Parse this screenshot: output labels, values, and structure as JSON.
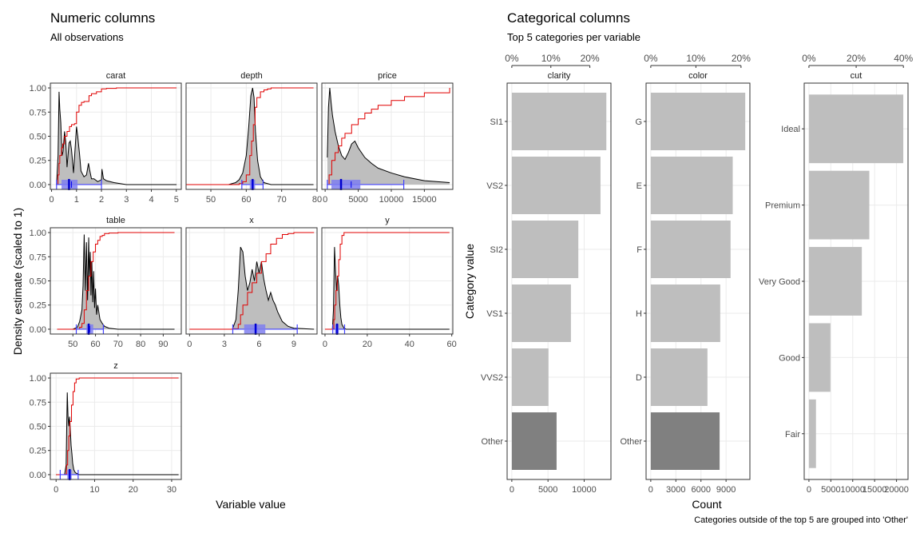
{
  "colors": {
    "density_fill": "#bebebe",
    "density_line": "#000000",
    "ecdf_line": "#e00000",
    "box": "#4040ff",
    "box_light": "#7f7ff0",
    "bar": "#bebebe",
    "bar_other": "#808080",
    "grid": "#ebebeb",
    "panel_border": "#333333"
  },
  "numeric": {
    "title": "Numeric columns",
    "subtitle": "All observations",
    "ylabel": "Density estimate (scaled to 1)",
    "xlabel": "Variable value",
    "yticks": [
      "0.00",
      "0.25",
      "0.50",
      "0.75",
      "1.00"
    ]
  },
  "categorical": {
    "title": "Categorical columns",
    "subtitle": "Top 5 categories per variable",
    "ylabel": "Category value",
    "xlabel": "Count",
    "caption": "Categories outside of the top 5 are grouped into 'Other'"
  },
  "chart_data": [
    {
      "type": "area",
      "name": "carat",
      "xlim": [
        -0.05,
        5.2
      ],
      "xticks": [
        0,
        1,
        2,
        3,
        4,
        5
      ],
      "xtick_labels": [
        "0",
        "1",
        "2",
        "3",
        "4",
        "5"
      ],
      "ylim": [
        0,
        1
      ],
      "density": {
        "x": [
          0.2,
          0.26,
          0.3,
          0.33,
          0.37,
          0.42,
          0.46,
          0.52,
          0.57,
          0.62,
          0.7,
          0.75,
          0.8,
          0.88,
          0.92,
          1.0,
          1.05,
          1.08,
          1.12,
          1.18,
          1.22,
          1.3,
          1.4,
          1.48,
          1.52,
          1.6,
          1.7,
          1.85,
          2.0,
          2.02,
          2.08,
          2.2,
          2.5,
          3.0,
          5.01
        ],
        "y": [
          0.0,
          0.3,
          0.96,
          0.78,
          0.64,
          0.3,
          0.34,
          0.55,
          0.44,
          0.18,
          0.43,
          0.45,
          0.36,
          0.12,
          0.28,
          0.6,
          0.5,
          0.42,
          0.32,
          0.14,
          0.12,
          0.08,
          0.1,
          0.22,
          0.16,
          0.06,
          0.06,
          0.03,
          0.05,
          0.16,
          0.06,
          0.04,
          0.02,
          0.0,
          0.0
        ]
      },
      "ecdf": {
        "x": [
          0.2,
          0.26,
          0.3,
          0.33,
          0.4,
          0.45,
          0.52,
          0.62,
          0.72,
          0.8,
          0.92,
          1.0,
          1.1,
          1.2,
          1.3,
          1.5,
          1.6,
          1.8,
          2.0,
          2.2,
          2.6,
          3.0,
          5.01
        ],
        "y": [
          0.0,
          0.1,
          0.22,
          0.3,
          0.38,
          0.42,
          0.5,
          0.55,
          0.6,
          0.62,
          0.63,
          0.75,
          0.82,
          0.85,
          0.86,
          0.92,
          0.94,
          0.96,
          0.99,
          0.995,
          1.0,
          1.0,
          1.0
        ]
      },
      "box": {
        "min": 0.2,
        "q1": 0.4,
        "median": 0.7,
        "mean": 0.8,
        "q3": 1.04,
        "max": 2.0
      }
    },
    {
      "type": "area",
      "name": "depth",
      "xlim": [
        43,
        80
      ],
      "xticks": [
        50,
        60,
        70,
        80
      ],
      "xtick_labels": [
        "50",
        "60",
        "70",
        "80"
      ],
      "ylim": [
        0,
        1
      ],
      "density": {
        "x": [
          43,
          55,
          57,
          58,
          59,
          60,
          60.7,
          61.3,
          61.8,
          62.2,
          62.6,
          63.2,
          64,
          65,
          66,
          67,
          70,
          79
        ],
        "y": [
          0,
          0,
          0.02,
          0.05,
          0.12,
          0.3,
          0.6,
          0.92,
          1.0,
          0.9,
          0.55,
          0.25,
          0.08,
          0.02,
          0.01,
          0,
          0,
          0
        ]
      },
      "ecdf": {
        "x": [
          43,
          58,
          59,
          60,
          61,
          61.5,
          62,
          62.5,
          63,
          64,
          65,
          66,
          67,
          79
        ],
        "y": [
          0,
          0.01,
          0.03,
          0.1,
          0.3,
          0.45,
          0.62,
          0.8,
          0.9,
          0.96,
          0.98,
          0.99,
          1.0,
          1.0
        ]
      },
      "box": {
        "min": 58.75,
        "q1": 61.0,
        "median": 61.8,
        "mean": 61.75,
        "q3": 62.5,
        "max": 64.75
      }
    },
    {
      "type": "area",
      "name": "price",
      "xlim": [
        -500,
        19300
      ],
      "xticks": [
        0,
        5000,
        10000,
        15000
      ],
      "xtick_labels": [
        "0",
        "5000",
        "10000",
        "15000"
      ],
      "ylim": [
        0,
        1
      ],
      "density": {
        "x": [
          326,
          500,
          700,
          900,
          1100,
          1500,
          2000,
          2500,
          3000,
          3500,
          4000,
          4500,
          5000,
          6000,
          7000,
          8000,
          10000,
          12000,
          15000,
          18823
        ],
        "y": [
          0.28,
          0.8,
          1.0,
          0.85,
          0.72,
          0.55,
          0.4,
          0.3,
          0.26,
          0.33,
          0.42,
          0.45,
          0.38,
          0.28,
          0.22,
          0.17,
          0.12,
          0.08,
          0.04,
          0.02
        ]
      },
      "ecdf": {
        "x": [
          326,
          600,
          1000,
          1500,
          2000,
          2500,
          3000,
          4000,
          5000,
          6000,
          7000,
          8000,
          10000,
          12000,
          15000,
          18823
        ],
        "y": [
          0,
          0.1,
          0.25,
          0.33,
          0.4,
          0.48,
          0.53,
          0.62,
          0.68,
          0.74,
          0.78,
          0.82,
          0.87,
          0.91,
          0.95,
          1.0
        ]
      },
      "box": {
        "min": 326,
        "q1": 950,
        "median": 2401,
        "mean": 3933,
        "q3": 5324,
        "max": 11886
      }
    },
    {
      "type": "area",
      "name": "table",
      "xlim": [
        40,
        98
      ],
      "xticks": [
        50,
        60,
        70,
        80,
        90
      ],
      "xtick_labels": [
        "50",
        "60",
        "70",
        "80",
        "90"
      ],
      "ylim": [
        0,
        1
      ],
      "density": {
        "x": [
          43,
          50,
          52,
          53,
          54,
          54.5,
          55,
          55.5,
          56,
          56.5,
          57,
          57.3,
          57.7,
          58,
          58.4,
          58.8,
          59.2,
          59.6,
          60,
          60.5,
          61,
          62,
          63,
          64,
          66,
          70,
          79,
          95
        ],
        "y": [
          0,
          0,
          0.02,
          0.08,
          0.2,
          0.45,
          0.98,
          0.4,
          0.9,
          0.3,
          0.95,
          0.55,
          0.8,
          0.35,
          0.7,
          0.28,
          0.6,
          0.22,
          0.42,
          0.15,
          0.25,
          0.1,
          0.06,
          0.03,
          0.01,
          0,
          0,
          0
        ]
      },
      "ecdf": {
        "x": [
          43,
          53,
          54,
          55,
          56,
          57,
          58,
          59,
          60,
          61,
          62,
          63,
          64,
          66,
          70,
          95
        ],
        "y": [
          0,
          0.02,
          0.06,
          0.2,
          0.4,
          0.55,
          0.7,
          0.8,
          0.88,
          0.92,
          0.96,
          0.97,
          0.99,
          0.995,
          1.0,
          1.0
        ]
      },
      "box": {
        "min": 51.5,
        "q1": 56,
        "median": 57,
        "mean": 57.46,
        "q3": 59,
        "max": 63.5
      }
    },
    {
      "type": "area",
      "name": "x",
      "xlim": [
        -0.3,
        11.0
      ],
      "xticks": [
        0,
        3,
        6,
        9
      ],
      "xtick_labels": [
        "0",
        "3",
        "6",
        "9"
      ],
      "ylim": [
        0,
        1
      ],
      "density": {
        "x": [
          0,
          3.7,
          4.0,
          4.2,
          4.4,
          4.6,
          4.8,
          5.0,
          5.2,
          5.4,
          5.6,
          5.8,
          6.0,
          6.2,
          6.4,
          6.6,
          6.8,
          7.0,
          7.2,
          7.4,
          7.6,
          8.0,
          8.5,
          9.0,
          10.74
        ],
        "y": [
          0,
          0,
          0.1,
          0.4,
          0.85,
          0.8,
          0.55,
          0.4,
          0.48,
          0.62,
          0.5,
          0.7,
          0.58,
          0.7,
          0.52,
          0.4,
          0.3,
          0.38,
          0.3,
          0.25,
          0.18,
          0.08,
          0.03,
          0.01,
          0
        ]
      },
      "ecdf": {
        "x": [
          0,
          3.7,
          4.2,
          4.4,
          4.6,
          5.0,
          5.4,
          5.8,
          6.2,
          6.6,
          7.0,
          7.5,
          8.0,
          8.5,
          9.0,
          10.74
        ],
        "y": [
          0,
          0.005,
          0.05,
          0.15,
          0.25,
          0.38,
          0.48,
          0.58,
          0.7,
          0.78,
          0.88,
          0.94,
          0.98,
          0.99,
          1.0,
          1.0
        ]
      },
      "box": {
        "min": 3.73,
        "q1": 4.71,
        "median": 5.7,
        "mean": 5.73,
        "q3": 6.54,
        "max": 9.29
      }
    },
    {
      "type": "area",
      "name": "y",
      "xlim": [
        -1.5,
        60.5
      ],
      "xticks": [
        0,
        20,
        40,
        60
      ],
      "xtick_labels": [
        "0",
        "20",
        "40",
        "60"
      ],
      "ylim": [
        0,
        1
      ],
      "density": {
        "x": [
          0,
          3.5,
          4.0,
          4.5,
          5.0,
          5.5,
          6.0,
          6.5,
          7.0,
          7.5,
          8.0,
          9.0,
          10.0,
          58.9
        ],
        "y": [
          0,
          0,
          0.2,
          0.85,
          0.6,
          0.4,
          0.55,
          0.45,
          0.25,
          0.12,
          0.05,
          0.01,
          0,
          0
        ]
      },
      "ecdf": {
        "x": [
          0,
          3.6,
          4.2,
          4.6,
          5.2,
          5.8,
          6.5,
          7.2,
          8.0,
          9.0,
          58.9
        ],
        "y": [
          0,
          0.005,
          0.1,
          0.25,
          0.4,
          0.55,
          0.72,
          0.88,
          0.97,
          1.0,
          1.0
        ]
      },
      "box": {
        "min": 3.68,
        "q1": 4.72,
        "median": 5.71,
        "mean": 5.73,
        "q3": 6.54,
        "max": 9.27
      }
    },
    {
      "type": "area",
      "name": "z",
      "xlim": [
        -1.5,
        32.5
      ],
      "xticks": [
        0,
        10,
        20,
        30
      ],
      "xtick_labels": [
        "0",
        "10",
        "20",
        "30"
      ],
      "ylim": [
        0,
        1
      ],
      "density": {
        "x": [
          0,
          2.2,
          2.6,
          2.9,
          3.1,
          3.3,
          3.5,
          3.7,
          3.9,
          4.1,
          4.3,
          4.6,
          5.0,
          5.5,
          6.0,
          31.8
        ],
        "y": [
          0,
          0,
          0.1,
          0.85,
          0.6,
          0.5,
          0.6,
          0.45,
          0.3,
          0.22,
          0.12,
          0.05,
          0.02,
          0.01,
          0,
          0
        ]
      },
      "ecdf": {
        "x": [
          0,
          2.3,
          2.7,
          3.0,
          3.3,
          3.6,
          4.0,
          4.4,
          4.8,
          5.2,
          6.0,
          31.8
        ],
        "y": [
          0,
          0.005,
          0.1,
          0.25,
          0.4,
          0.55,
          0.72,
          0.86,
          0.95,
          0.99,
          1.0,
          1.0
        ]
      },
      "box": {
        "min": 1.07,
        "q1": 2.91,
        "median": 3.53,
        "mean": 3.54,
        "q3": 4.04,
        "max": 5.73
      }
    },
    {
      "type": "bar",
      "name": "clarity",
      "orientation": "horizontal",
      "categories": [
        "SI1",
        "VS2",
        "SI2",
        "VS1",
        "VVS2",
        "Other"
      ],
      "values": [
        13065,
        12258,
        9194,
        8171,
        5066,
        6186
      ],
      "xlim": [
        -650,
        13700
      ],
      "xticks": [
        0,
        5000,
        10000
      ],
      "xtick_labels": [
        "0",
        "5000",
        "10000"
      ],
      "top_axis": {
        "ticks": [
          0,
          5394,
          10788
        ],
        "labels": [
          "0%",
          "10%",
          "20%"
        ]
      }
    },
    {
      "type": "bar",
      "name": "color",
      "orientation": "horizontal",
      "categories": [
        "G",
        "E",
        "F",
        "H",
        "D",
        "Other"
      ],
      "values": [
        11292,
        9797,
        9542,
        8304,
        6775,
        8230
      ],
      "xlim": [
        -560,
        11850
      ],
      "xticks": [
        0,
        3000,
        6000,
        9000
      ],
      "xtick_labels": [
        "0",
        "3000",
        "6000",
        "9000"
      ],
      "top_axis": {
        "ticks": [
          0,
          5394,
          10788
        ],
        "labels": [
          "0%",
          "10%",
          "20%"
        ]
      }
    },
    {
      "type": "bar",
      "name": "cut",
      "orientation": "horizontal",
      "categories": [
        "Ideal",
        "Premium",
        "Very Good",
        "Good",
        "Fair"
      ],
      "values": [
        21551,
        13791,
        12082,
        4906,
        1610
      ],
      "xlim": [
        -1080,
        22630
      ],
      "xticks": [
        0,
        5000,
        10000,
        15000,
        20000
      ],
      "xtick_labels": [
        "0",
        "5000",
        "10000",
        "15000",
        "20000"
      ],
      "top_axis": {
        "ticks": [
          0,
          10788,
          21576
        ],
        "labels": [
          "0%",
          "20%",
          "40%"
        ]
      }
    }
  ]
}
